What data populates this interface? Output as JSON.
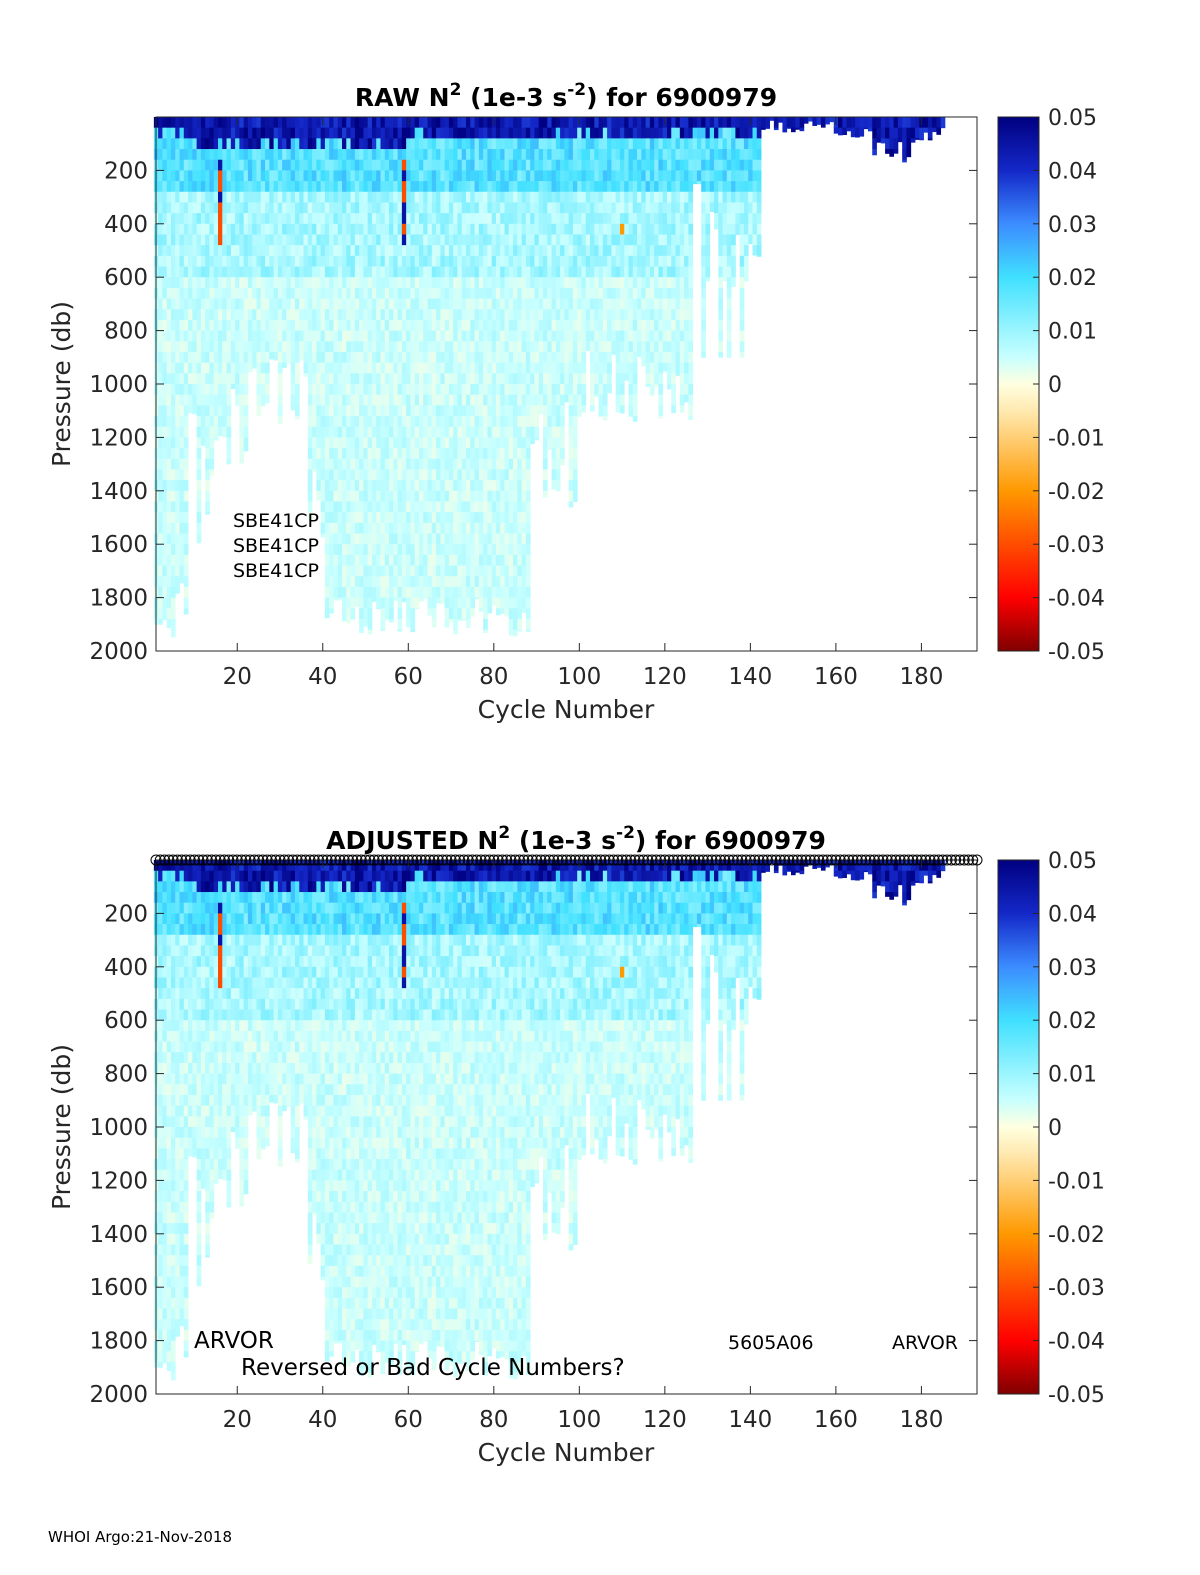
{
  "footer": "WHOI Argo:21-Nov-2018",
  "colorbar": {
    "ticks": [
      "0.05",
      "0.04",
      "0.03",
      "0.02",
      "0.01",
      "0",
      "-0.01",
      "-0.02",
      "-0.03",
      "-0.04",
      "-0.05"
    ],
    "range": [
      -0.05,
      0.05
    ],
    "colormap": "jet-like with white at zero",
    "colors": [
      "#800000",
      "#ff0000",
      "#ff9900",
      "#ffe9b0",
      "#ffffe0",
      "#c8ffff",
      "#40e0ff",
      "#3c8cff",
      "#1428c8",
      "#000080"
    ]
  },
  "chart_data": [
    {
      "type": "heatmap",
      "title_prefix": "RAW N",
      "title_sup1": "2",
      "title_mid": " (1e-3 s",
      "title_sup2": "-2",
      "title_suffix": ") for 6900979",
      "xlabel": "Cycle Number",
      "ylabel": "Pressure (db)",
      "xlim": [
        1,
        193
      ],
      "ylim": [
        0,
        2000
      ],
      "y_reversed": true,
      "xticks": [
        "20",
        "40",
        "60",
        "80",
        "100",
        "120",
        "140",
        "160",
        "180"
      ],
      "yticks": [
        "200",
        "400",
        "600",
        "800",
        "1000",
        "1200",
        "1400",
        "1600",
        "1800",
        "2000"
      ],
      "cycles_with_data": [
        1,
        185
      ],
      "annotations": [
        "SBE41CP",
        "SBE41CP",
        "SBE41CP"
      ],
      "markers_at_surface": false
    },
    {
      "type": "heatmap",
      "title_prefix": "ADJUSTED N",
      "title_sup1": "2",
      "title_mid": " (1e-3 s",
      "title_sup2": "-2",
      "title_suffix": ") for 6900979",
      "xlabel": "Cycle Number",
      "ylabel": "Pressure (db)",
      "xlim": [
        1,
        193
      ],
      "ylim": [
        0,
        2000
      ],
      "y_reversed": true,
      "xticks": [
        "20",
        "40",
        "60",
        "80",
        "100",
        "120",
        "140",
        "160",
        "180"
      ],
      "yticks": [
        "200",
        "400",
        "600",
        "800",
        "1000",
        "1200",
        "1400",
        "1600",
        "1800",
        "2000"
      ],
      "cycles_with_data": [
        1,
        185
      ],
      "annotations": [
        "ARVOR",
        "Reversed or Bad Cycle Numbers?",
        "5605A06",
        "ARVOR"
      ],
      "markers_at_surface": true
    }
  ]
}
